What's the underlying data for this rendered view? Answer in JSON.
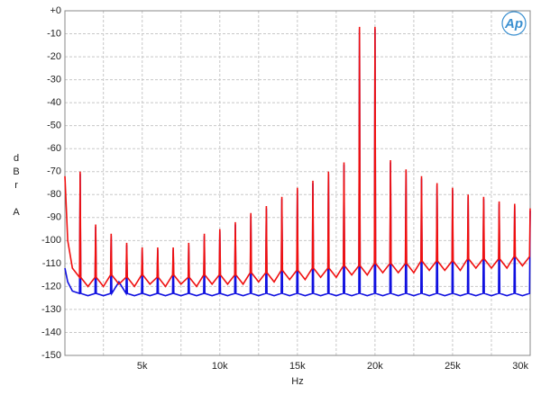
{
  "chart_data": {
    "type": "line",
    "logo": "Ap",
    "x_label": "Hz",
    "y_label": "dBr A",
    "grid": true,
    "xlim": [
      20,
      30000
    ],
    "ylim": [
      -150,
      0
    ],
    "xticks": [
      {
        "value": 5000,
        "label": "5k"
      },
      {
        "value": 10000,
        "label": "10k"
      },
      {
        "value": 15000,
        "label": "15k"
      },
      {
        "value": 20000,
        "label": "20k"
      },
      {
        "value": 25000,
        "label": "25k"
      },
      {
        "value": 30000,
        "label": "30k"
      }
    ],
    "xminorticks": [
      2500,
      7500,
      12500,
      17500,
      22500,
      27500
    ],
    "yticks": [
      {
        "value": 0,
        "label": "+0"
      },
      -10,
      -20,
      -30,
      -40,
      -50,
      -60,
      -70,
      -80,
      -90,
      -100,
      -110,
      -120,
      -130,
      -140,
      -150
    ],
    "x": [
      20,
      200,
      500,
      960,
      1000,
      1040,
      1500,
      1960,
      2000,
      2040,
      2500,
      2960,
      3000,
      3040,
      3500,
      3960,
      4000,
      4040,
      4500,
      4960,
      5000,
      5040,
      5500,
      5960,
      6000,
      6040,
      6500,
      6960,
      7000,
      7040,
      7500,
      7960,
      8000,
      8040,
      8500,
      8960,
      9000,
      9040,
      9500,
      9960,
      10000,
      10040,
      10500,
      10960,
      11000,
      11040,
      11500,
      11960,
      12000,
      12040,
      12500,
      12960,
      13000,
      13040,
      13500,
      13960,
      14000,
      14040,
      14500,
      14960,
      15000,
      15040,
      15500,
      15960,
      16000,
      16040,
      16500,
      16960,
      17000,
      17040,
      17500,
      17960,
      18000,
      18040,
      18500,
      18960,
      19000,
      19040,
      19500,
      19960,
      20000,
      20040,
      20500,
      20960,
      21000,
      21040,
      21500,
      21960,
      22000,
      22040,
      22500,
      22960,
      23000,
      23040,
      23500,
      23960,
      24000,
      24040,
      24500,
      24960,
      25000,
      25040,
      25500,
      25960,
      26000,
      26040,
      26500,
      26960,
      27000,
      27040,
      27500,
      27960,
      28000,
      28040,
      28500,
      28960,
      29000,
      29040,
      29500,
      29960,
      30000
    ],
    "series": [
      {
        "color": "#1010e0",
        "values": [
          -112,
          -118,
          -122,
          -123,
          -71,
          -123,
          -124,
          -123,
          -94,
          -123,
          -124,
          -123,
          -98,
          -123,
          -118,
          -123,
          -102,
          -123,
          -124,
          -123,
          -104,
          -123,
          -124,
          -123,
          -104,
          -123,
          -124,
          -123,
          -104,
          -123,
          -124,
          -123,
          -102,
          -123,
          -124,
          -123,
          -98,
          -123,
          -124,
          -123,
          -96,
          -123,
          -124,
          -123,
          -93,
          -123,
          -124,
          -123,
          -89,
          -123,
          -124,
          -123,
          -86,
          -123,
          -124,
          -123,
          -82,
          -123,
          -124,
          -123,
          -78,
          -123,
          -124,
          -123,
          -75,
          -123,
          -124,
          -123,
          -71,
          -123,
          -124,
          -123,
          -67,
          -123,
          -124,
          -123,
          -8,
          -123,
          -124,
          -123,
          -8,
          -123,
          -124,
          -123,
          -66,
          -123,
          -124,
          -123,
          -70,
          -123,
          -124,
          -123,
          -73,
          -123,
          -124,
          -123,
          -76,
          -123,
          -124,
          -123,
          -78,
          -123,
          -124,
          -123,
          -81,
          -123,
          -124,
          -123,
          -82,
          -123,
          -124,
          -123,
          -84,
          -123,
          -124,
          -123,
          -85,
          -123,
          -124,
          -123,
          -87
        ]
      },
      {
        "color": "#f01010",
        "values": [
          -72,
          -100,
          -112,
          -116,
          -70,
          -116,
          -120,
          -116,
          -93,
          -116,
          -120,
          -115,
          -97,
          -115,
          -119,
          -116,
          -101,
          -116,
          -120,
          -115,
          -103,
          -115,
          -119,
          -116,
          -103,
          -116,
          -120,
          -115,
          -103,
          -115,
          -119,
          -116,
          -101,
          -116,
          -120,
          -115,
          -97,
          -115,
          -119,
          -115,
          -95,
          -115,
          -119,
          -115,
          -92,
          -115,
          -119,
          -114,
          -88,
          -114,
          -118,
          -114,
          -85,
          -114,
          -118,
          -113,
          -81,
          -113,
          -117,
          -113,
          -77,
          -113,
          -117,
          -112,
          -74,
          -112,
          -116,
          -112,
          -70,
          -112,
          -116,
          -111,
          -66,
          -111,
          -115,
          -111,
          -7,
          -111,
          -115,
          -110,
          -7,
          -110,
          -114,
          -110,
          -65,
          -110,
          -114,
          -110,
          -69,
          -110,
          -114,
          -109,
          -72,
          -109,
          -113,
          -109,
          -75,
          -109,
          -113,
          -109,
          -77,
          -109,
          -113,
          -108,
          -80,
          -108,
          -112,
          -108,
          -81,
          -108,
          -112,
          -108,
          -83,
          -108,
          -112,
          -107,
          -84,
          -107,
          -111,
          -107,
          -86
        ]
      }
    ]
  }
}
